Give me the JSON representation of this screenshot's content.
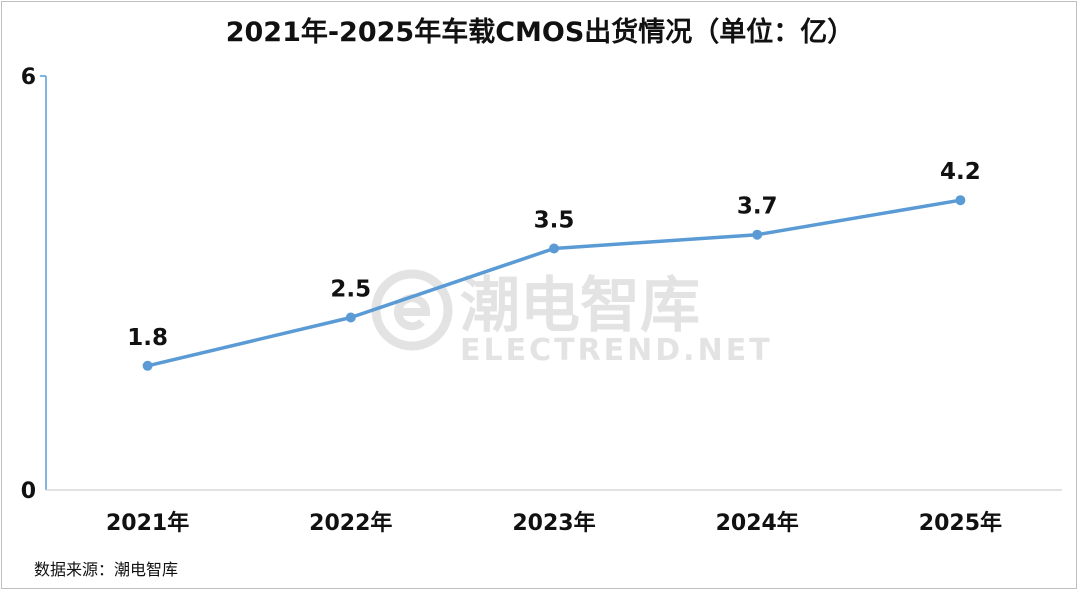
{
  "source_text": "数据来源：潮电智库",
  "watermark": {
    "cn": "潮电智库",
    "en": "ELECTREND.NET"
  },
  "colors": {
    "line": "#5b9bd5",
    "axis": "#5b9bd5",
    "text": "#111111",
    "watermark": "#e3e3e3"
  },
  "chart_data": {
    "type": "line",
    "title": "2021年-2025年车载CMOS出货情况（单位：亿）",
    "xlabel": "",
    "ylabel": "",
    "categories": [
      "2021年",
      "2022年",
      "2023年",
      "2024年",
      "2025年"
    ],
    "series": [
      {
        "values": [
          1.8,
          2.5,
          3.5,
          3.7,
          4.2
        ]
      }
    ],
    "data_labels": [
      "1.8",
      "2.5",
      "3.5",
      "3.7",
      "4.2"
    ],
    "ylim": [
      0,
      6
    ],
    "y_ticks": [
      "0",
      "6"
    ],
    "grid": false,
    "legend": "none"
  }
}
